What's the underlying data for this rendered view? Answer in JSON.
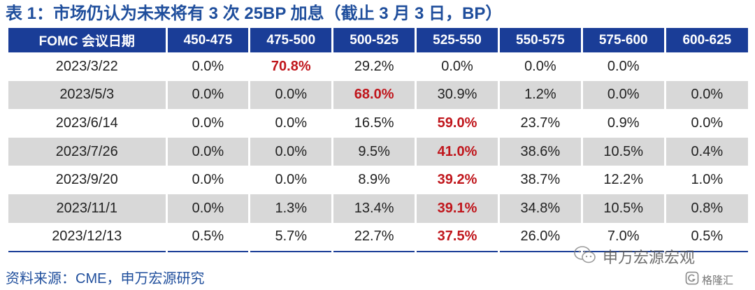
{
  "title": "表 1：市场仍认为未来将有 3 次 25BP 加息（截止 3 月 3 日，BP）",
  "table": {
    "headers": [
      "FOMC 会议日期",
      "450-475",
      "475-500",
      "500-525",
      "525-550",
      "550-575",
      "575-600",
      "600-625"
    ],
    "rows": [
      [
        "2023/3/22",
        "0.0%",
        "70.8%",
        "29.2%",
        "0.0%",
        "0.0%",
        "0.0%",
        ""
      ],
      [
        "2023/5/3",
        "0.0%",
        "0.0%",
        "68.0%",
        "30.9%",
        "1.2%",
        "0.0%",
        "0.0%"
      ],
      [
        "2023/6/14",
        "0.0%",
        "0.0%",
        "16.5%",
        "59.0%",
        "23.7%",
        "0.9%",
        "0.0%"
      ],
      [
        "2023/7/26",
        "0.0%",
        "0.0%",
        "9.5%",
        "41.0%",
        "38.6%",
        "10.5%",
        "0.4%"
      ],
      [
        "2023/9/20",
        "0.0%",
        "0.0%",
        "8.9%",
        "39.2%",
        "38.7%",
        "12.2%",
        "1.0%"
      ],
      [
        "2023/11/1",
        "0.0%",
        "1.3%",
        "13.4%",
        "39.1%",
        "34.8%",
        "10.5%",
        "0.8%"
      ],
      [
        "2023/12/13",
        "0.5%",
        "5.7%",
        "22.7%",
        "37.5%",
        "26.0%",
        "7.0%",
        "0.5%"
      ]
    ],
    "highlight_cols": [
      2,
      3,
      4,
      4,
      4,
      4,
      4
    ],
    "colors": {
      "header_bg": "#1a3d97",
      "highlight": "#c0161c",
      "shade": "#d8d8d8",
      "title": "#1f4e9c"
    }
  },
  "source": "资料来源：CME，申万宏源研究",
  "watermark": {
    "account": "申万宏源宏观",
    "account_icon": "wechat-icon",
    "brand": "格隆汇",
    "brand_icon": "glh-logo-icon"
  }
}
